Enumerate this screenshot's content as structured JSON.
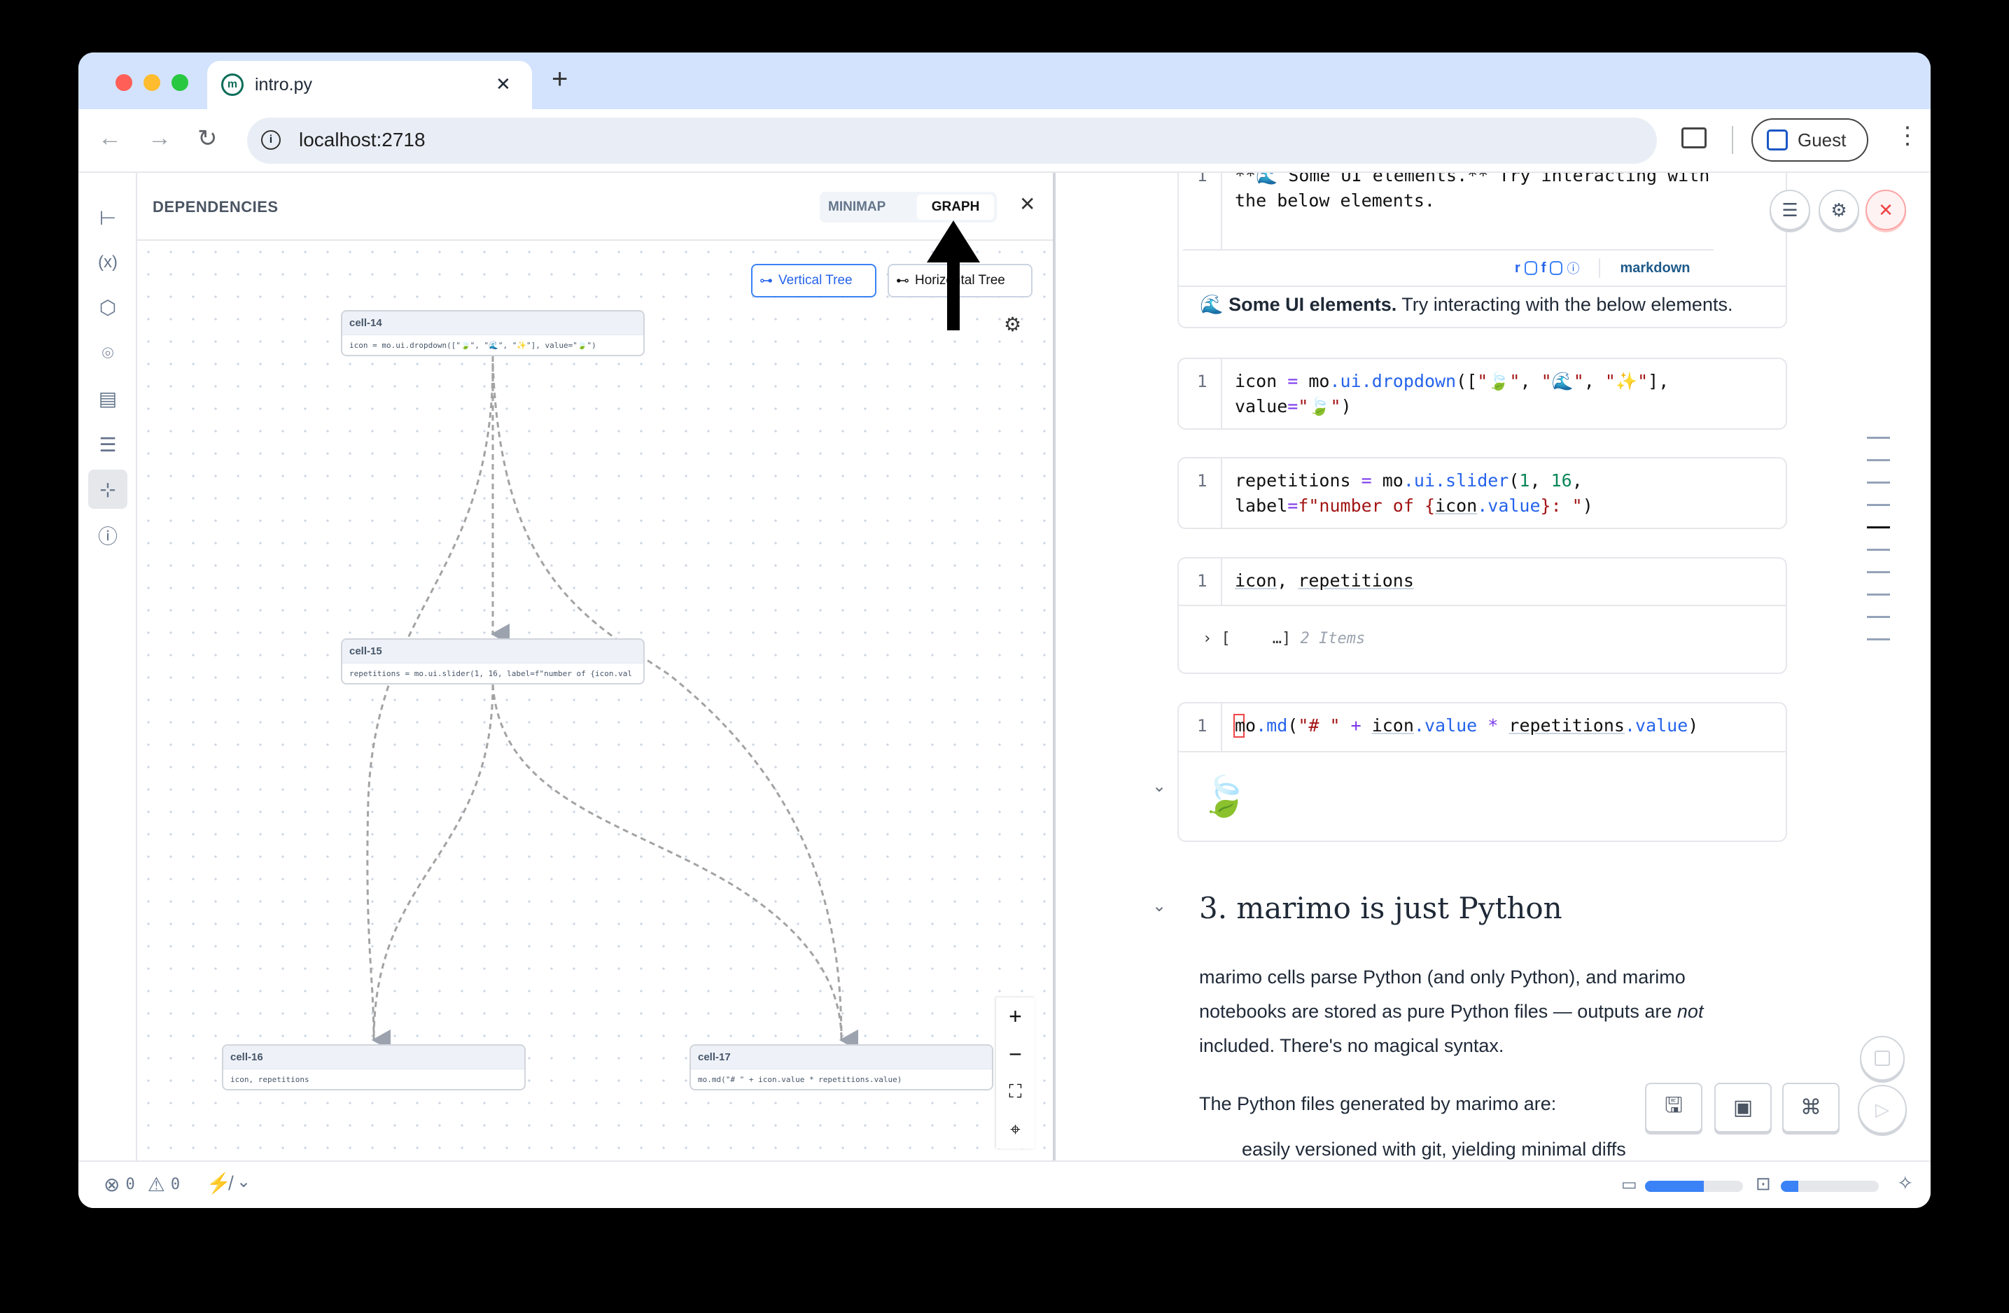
{
  "browser": {
    "tab_title": "intro.py",
    "tab_close": "✕",
    "new_tab": "+",
    "url": "localhost:2718",
    "profile_label": "Guest"
  },
  "sidebar": {
    "items": [
      {
        "icon": "file-tree-icon",
        "glyph": "⌥"
      },
      {
        "icon": "variables-icon",
        "glyph": "(x)"
      },
      {
        "icon": "package-icon",
        "glyph": "⬡"
      },
      {
        "icon": "ai-bot-icon",
        "glyph": "⌾"
      },
      {
        "icon": "scroll-icon",
        "glyph": "▤"
      },
      {
        "icon": "search-list-icon",
        "glyph": "☰"
      },
      {
        "icon": "dependencies-icon",
        "glyph": "⊹",
        "active": true
      },
      {
        "icon": "help-icon",
        "glyph": "?"
      }
    ]
  },
  "dependencies": {
    "title": "DEPENDENCIES",
    "toggle": {
      "minimap": "MINIMAP",
      "graph": "GRAPH",
      "active": "graph"
    },
    "close": "✕",
    "layout_buttons": {
      "vertical": "Vertical Tree",
      "horizontal": "Horizontal Tree",
      "active": "vertical"
    },
    "nodes": [
      {
        "id": "cell-14",
        "code": "icon = mo.ui.dropdown([\"🍃\", \"🌊\", \"✨\"], value=\"🍃\")"
      },
      {
        "id": "cell-15",
        "code": "repetitions = mo.ui.slider(1, 16, label=f\"number of {icon.val"
      },
      {
        "id": "cell-16",
        "code": "icon, repetitions"
      },
      {
        "id": "cell-17",
        "code": "mo.md(\"# \" + icon.value * repetitions.value)"
      }
    ],
    "edges": [
      [
        "cell-14",
        "cell-15"
      ],
      [
        "cell-14",
        "cell-16"
      ],
      [
        "cell-14",
        "cell-17"
      ],
      [
        "cell-15",
        "cell-16"
      ],
      [
        "cell-15",
        "cell-17"
      ]
    ],
    "zoom_controls": {
      "zoom_in": "+",
      "zoom_out": "−",
      "fit": "⛶",
      "locate": "⌖"
    }
  },
  "notebook": {
    "cell_md": {
      "code_lines": [
        "**🌊 Some UI elements.** Try interacting with",
        "the below elements."
      ],
      "footer": {
        "r": "r",
        "f": "f",
        "lang": "markdown"
      },
      "output_bold": "Some UI elements.",
      "output_rest": " Try interacting with the below elements.",
      "output_emoji": "🌊"
    },
    "cells": [
      {
        "line": "1",
        "code": [
          [
            [
              "icon ",
              "k-mod"
            ],
            [
              "=",
              "k-op"
            ],
            [
              " mo",
              "k-mod"
            ],
            [
              ".ui",
              "k-attr"
            ],
            [
              ".dropdown",
              "k-attr"
            ],
            [
              "([",
              "k-mod"
            ],
            [
              "\"🍃\"",
              "k-str"
            ],
            [
              ", ",
              "k-mod"
            ],
            [
              "\"🌊\"",
              "k-str"
            ],
            [
              ", ",
              "k-mod"
            ],
            [
              "\"✨\"",
              "k-str"
            ],
            [
              "],",
              "k-mod"
            ]
          ],
          [
            [
              "value",
              "k-mod"
            ],
            [
              "=",
              "k-op"
            ],
            [
              "\"🍃\"",
              "k-str"
            ],
            [
              ")",
              "k-mod"
            ]
          ]
        ]
      },
      {
        "line": "1",
        "code": [
          [
            [
              "repetitions ",
              "k-mod"
            ],
            [
              "=",
              "k-op"
            ],
            [
              " mo",
              "k-mod"
            ],
            [
              ".ui",
              "k-attr"
            ],
            [
              ".slider",
              "k-attr"
            ],
            [
              "(",
              "k-mod"
            ],
            [
              "1",
              "k-num"
            ],
            [
              ", ",
              "k-mod"
            ],
            [
              "16",
              "k-num"
            ],
            [
              ",",
              "k-mod"
            ]
          ],
          [
            [
              "label",
              "k-mod"
            ],
            [
              "=",
              "k-op"
            ],
            [
              "f\"number of {",
              "k-str"
            ],
            [
              "icon",
              "k-var"
            ],
            [
              ".value",
              "k-attr"
            ],
            [
              "}: \"",
              "k-str"
            ],
            [
              ")",
              "k-mod"
            ]
          ]
        ]
      },
      {
        "line": "1",
        "code": [
          [
            [
              "icon",
              "k-var"
            ],
            [
              ", ",
              "k-mod"
            ],
            [
              "repetitions",
              "k-var"
            ]
          ]
        ],
        "output": {
          "prefix": "› [",
          "ellipsis": "…]",
          "count": "2 Items"
        }
      },
      {
        "line": "1",
        "code": [
          [
            [
              "mo",
              "k-mod"
            ],
            [
              ".md",
              "k-attr"
            ],
            [
              "(",
              "k-mod"
            ],
            [
              "\"# \"",
              "k-str"
            ],
            [
              " + ",
              "k-op"
            ],
            [
              "icon",
              "k-var"
            ],
            [
              ".value",
              "k-attr"
            ],
            [
              " * ",
              "k-op"
            ],
            [
              "repetitions",
              "k-var"
            ],
            [
              ".value",
              "k-attr"
            ],
            [
              ")",
              "k-mod"
            ]
          ]
        ],
        "output": {
          "emoji": "🍃"
        }
      }
    ],
    "section_heading": "3. marimo is just Python",
    "paragraph_lines": [
      "marimo cells parse Python (and only Python), and marimo",
      "notebooks are stored as pure Python files — outputs are ",
      "included. There's no magical syntax."
    ],
    "paragraph_em": "not",
    "paragraph2": "The Python files generated by marimo are:",
    "bullet_cut": "easily versioned with git, yielding minimal diffs"
  },
  "status_bar": {
    "errors": "0",
    "warnings": "0",
    "memory_usage_pct": 60,
    "cpu_usage_pct": 18
  },
  "colors": {
    "accent": "#3b82f6",
    "danger": "#ef4444",
    "tabbar": "#d3e3fd"
  }
}
